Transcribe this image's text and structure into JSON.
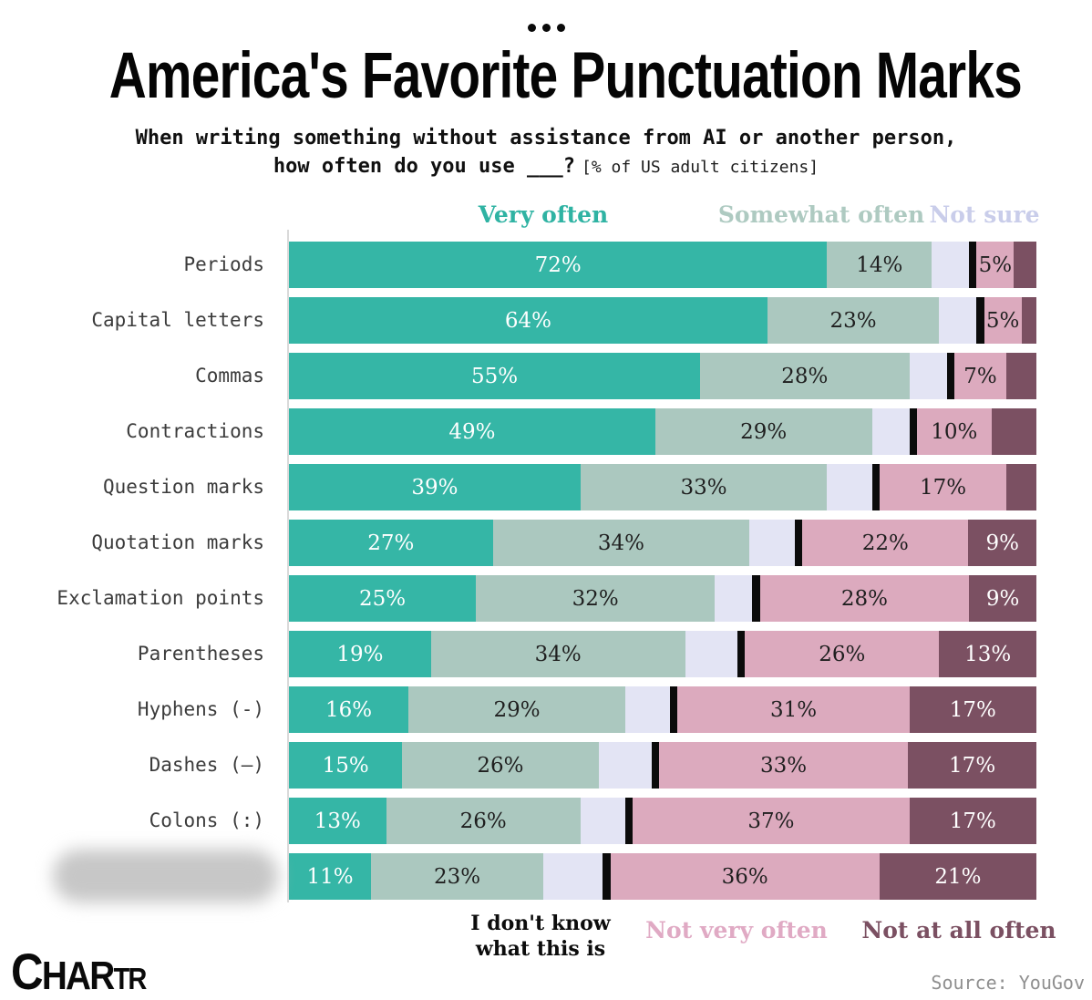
{
  "header": {
    "dots_icon": "three-dots-ellipsis",
    "title": "America's Favorite Punctuation Marks",
    "subtitle_line1": "When writing something without assistance from AI or another person,",
    "subtitle_line2": "how often do you use ___?",
    "subtitle_note": "[% of US adult citizens]"
  },
  "legend_top": [
    {
      "label": "Very often",
      "color": "#2fb3a3"
    },
    {
      "label": "Somewhat often",
      "color": "#aecac1"
    },
    {
      "label": "Not sure",
      "color": "#c9cdea"
    }
  ],
  "legend_bottom": [
    {
      "line1": "I don't know",
      "line2": "what this is",
      "color": "#0c0c0c"
    },
    {
      "label": "Not very often",
      "color": "#e0aac4"
    },
    {
      "label": "Not at all often",
      "color": "#7b5062"
    }
  ],
  "footer": {
    "logo_part1": "C",
    "logo_part2": "HAR",
    "logo_part3": "TR",
    "source": "Source: YouGov"
  },
  "chart_data": {
    "type": "bar",
    "stacked": true,
    "orientation": "horizontal",
    "title": "America's Favorite Punctuation Marks",
    "subtitle": "When writing something without assistance from AI or another person, how often do you use ___?",
    "unit": "% of US adult citizens",
    "xlim": [
      0,
      100
    ],
    "grid": false,
    "legend_position": "above-and-below-chart",
    "series": [
      "Very often",
      "Somewhat often",
      "Not sure",
      "I don't know what this is",
      "Not very often",
      "Not at all often"
    ],
    "series_keys": [
      "very-often",
      "somewhat-often",
      "not-sure",
      "dont-know",
      "not-very-often",
      "not-at-all-often"
    ],
    "series_colors": [
      "#35b6a6",
      "#abc8bf",
      "#e3e4f4",
      "#0b0b0b",
      "#dcaabe",
      "#7b5062"
    ],
    "value_label_colors": [
      "#ffffff",
      "#1f1f1f",
      "#1f1f1f",
      "#ffffff",
      "#1f1f1f",
      "#ffffff"
    ],
    "note": "Last category label is blurred/redacted in the source image; segments without printed labels are estimated from bar widths.",
    "categories": [
      "Periods",
      "Capital letters",
      "Commas",
      "Contractions",
      "Question marks",
      "Quotation marks",
      "Exclamation points",
      "Parentheses",
      "Hyphens (-)",
      "Dashes (—)",
      "Colons (:)",
      ""
    ],
    "rows": [
      {
        "category": "Periods",
        "blurred": false,
        "values": [
          72,
          14,
          5,
          1,
          5,
          3
        ],
        "display": [
          "72%",
          "14%",
          "",
          "",
          "5%",
          ""
        ]
      },
      {
        "category": "Capital letters",
        "blurred": false,
        "values": [
          64,
          23,
          5,
          1,
          5,
          2
        ],
        "display": [
          "64%",
          "23%",
          "",
          "",
          "5%",
          ""
        ]
      },
      {
        "category": "Commas",
        "blurred": false,
        "values": [
          55,
          28,
          5,
          1,
          7,
          4
        ],
        "display": [
          "55%",
          "28%",
          "",
          "",
          "7%",
          ""
        ]
      },
      {
        "category": "Contractions",
        "blurred": false,
        "values": [
          49,
          29,
          5,
          1,
          10,
          6
        ],
        "display": [
          "49%",
          "29%",
          "",
          "",
          "10%",
          ""
        ]
      },
      {
        "category": "Question marks",
        "blurred": false,
        "values": [
          39,
          33,
          6,
          1,
          17,
          4
        ],
        "display": [
          "39%",
          "33%",
          "",
          "",
          "17%",
          ""
        ]
      },
      {
        "category": "Quotation marks",
        "blurred": false,
        "values": [
          27,
          34,
          6,
          1,
          22,
          9
        ],
        "display": [
          "27%",
          "34%",
          "",
          "",
          "22%",
          "9%"
        ]
      },
      {
        "category": "Exclamation points",
        "blurred": false,
        "values": [
          25,
          32,
          5,
          1,
          28,
          9
        ],
        "display": [
          "25%",
          "32%",
          "",
          "",
          "28%",
          "9%"
        ]
      },
      {
        "category": "Parentheses",
        "blurred": false,
        "values": [
          19,
          34,
          7,
          1,
          26,
          13
        ],
        "display": [
          "19%",
          "34%",
          "",
          "",
          "26%",
          "13%"
        ]
      },
      {
        "category": "Hyphens (-)",
        "blurred": false,
        "values": [
          16,
          29,
          6,
          1,
          31,
          17
        ],
        "display": [
          "16%",
          "29%",
          "",
          "",
          "31%",
          "17%"
        ]
      },
      {
        "category": "Dashes (—)",
        "blurred": false,
        "values": [
          15,
          26,
          7,
          1,
          33,
          17
        ],
        "display": [
          "15%",
          "26%",
          "",
          "",
          "33%",
          "17%"
        ]
      },
      {
        "category": "Colons (:)",
        "blurred": false,
        "values": [
          13,
          26,
          6,
          1,
          37,
          17
        ],
        "display": [
          "13%",
          "26%",
          "",
          "",
          "37%",
          "17%"
        ]
      },
      {
        "category": "",
        "blurred": true,
        "values": [
          11,
          23,
          8,
          1,
          36,
          21
        ],
        "display": [
          "11%",
          "23%",
          "",
          "",
          "36%",
          "21%"
        ]
      }
    ]
  }
}
